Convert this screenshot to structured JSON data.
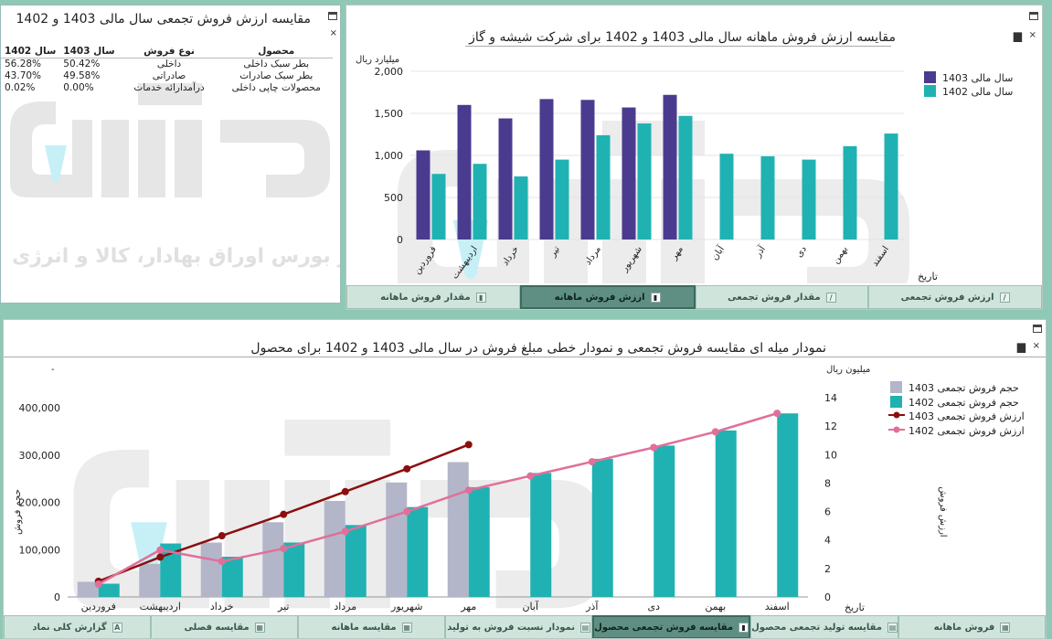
{
  "colors": {
    "purple": "#4b3b8f",
    "teal": "#20b2b2",
    "lavender": "#b3b6c9",
    "darkred": "#8b0e0e",
    "pink": "#e0709a",
    "active_tab": "#5f8f82"
  },
  "left_panel": {
    "title": "مقایسه ارزش فروش تجمعی سال مالی 1403 و 1402",
    "headers": {
      "product": "محصول",
      "sale_type": "نوع فروش",
      "year1": "سال 1403",
      "year2": "سال 1402"
    },
    "rows": [
      {
        "product": "بطر سبک داخلی",
        "sale_type": "داخلی",
        "y1403": "50.42%",
        "y1402": "56.28%"
      },
      {
        "product": "بطر سبک صادرات",
        "sale_type": "صادراتی",
        "y1403": "49.58%",
        "y1402": "43.70%"
      },
      {
        "product": "محصولات چاپی داخلی",
        "sale_type": "درآمدارائه خدمات",
        "y1403": "0.00%",
        "y1402": "0.02%"
      }
    ]
  },
  "top_chart": {
    "title": "مقایسه ارزش فروش ماهانه سال مالی 1403 و 1402 برای شرکت شیشه و گاز",
    "ylabel": "میلیارد ریال",
    "xlabel": "تاریخ",
    "legend": [
      "سال مالی 1403",
      "سال مالی 1402"
    ],
    "tabs": [
      {
        "label": "مقدار فروش ماهانه",
        "icon": "bar-chart-icon",
        "active": false
      },
      {
        "label": "ارزش فروش ماهانه",
        "icon": "bar-chart-icon",
        "active": true
      },
      {
        "label": "مقدار فروش تجمعی",
        "icon": "line-chart-icon",
        "active": false
      },
      {
        "label": "ارزش فروش تجمعی",
        "icon": "line-chart-icon",
        "active": false
      }
    ]
  },
  "bottom_chart": {
    "title": "نمودار میله ای مقایسه فروش تجمعی و نمودار خطی مبلغ فروش در سال مالی 1403 و 1402 برای محصول",
    "ylabel_left": "حجم فروش",
    "ylabel_right": "ارزش فروش",
    "unit_right": "میلیون ریال",
    "xlabel": "تاریخ",
    "dash": "-",
    "legend": [
      "حجم فروش تجمعی  1403",
      "حجم فروش تجمعی 1402",
      "ارزش فروش تجمعی 1403",
      "ارزش فروش تجمعی 1402"
    ],
    "tabs": [
      {
        "label": "گزارش کلی نماد",
        "icon": "letter-a-icon",
        "active": false
      },
      {
        "label": "مقایسه فصلی",
        "icon": "grid-icon",
        "active": false
      },
      {
        "label": "مقایسه ماهانه",
        "icon": "grid-icon",
        "active": false
      },
      {
        "label": "نمودار نسبت فروش به تولید",
        "icon": "table-icon",
        "active": false
      },
      {
        "label": "مقایسه فروش تجمعی محصول",
        "icon": "bar-chart-icon",
        "active": true
      },
      {
        "label": "مقایسه تولید تجمعی محصول",
        "icon": "table-icon",
        "active": false
      },
      {
        "label": "فروش ماهانه",
        "icon": "grid-icon",
        "active": false
      }
    ]
  },
  "watermark": {
    "brand": "آگاه",
    "line1": "کارگزار بورس اوراق بهادار، کالا و انرژی"
  },
  "chart_data": [
    {
      "type": "bar",
      "categories": [
        "فروردین",
        "اردیبهشت",
        "خرداد",
        "تیر",
        "مرداد",
        "شهریور",
        "مهر",
        "آبان",
        "آذر",
        "دی",
        "بهمن",
        "اسفند"
      ],
      "series": [
        {
          "name": "سال مالی 1403",
          "values": [
            1060,
            1600,
            1440,
            1670,
            1660,
            1570,
            1720,
            null,
            null,
            null,
            null,
            null
          ]
        },
        {
          "name": "سال مالی 1402",
          "values": [
            780,
            900,
            750,
            950,
            1240,
            1380,
            1470,
            1020,
            990,
            950,
            1110,
            1260
          ]
        }
      ],
      "ylim": [
        0,
        2000
      ],
      "yticks": [
        "0",
        "500",
        "1,000",
        "1,500",
        "2,000"
      ],
      "ylabel": "میلیارد ریال",
      "xlabel": "تاریخ",
      "legend_position": "right"
    },
    {
      "type": "bar",
      "categories": [
        "فروردین",
        "اردیبهشت",
        "خرداد",
        "تیر",
        "مرداد",
        "شهریور",
        "مهر",
        "آبان",
        "آذر",
        "دی",
        "بهمن",
        "اسفند"
      ],
      "bar_series": [
        {
          "name": "حجم فروش تجمعی  1403",
          "values": [
            32000,
            70000,
            115000,
            158000,
            203000,
            242000,
            285000,
            null,
            null,
            null,
            null,
            null
          ]
        },
        {
          "name": "حجم فروش تجمعی 1402",
          "values": [
            28000,
            113000,
            85000,
            115000,
            152000,
            190000,
            232000,
            262000,
            292000,
            320000,
            352000,
            388000
          ]
        }
      ],
      "line_series": [
        {
          "name": "ارزش فروش تجمعی 1403",
          "values": [
            1.1,
            2.8,
            4.3,
            5.8,
            7.4,
            9.0,
            10.7,
            null,
            null,
            null,
            null,
            null
          ]
        },
        {
          "name": "ارزش فروش تجمعی 1402",
          "values": [
            0.9,
            3.3,
            2.5,
            3.4,
            4.6,
            6.0,
            7.5,
            8.5,
            9.5,
            10.5,
            11.6,
            12.9
          ]
        }
      ],
      "ylim_left": [
        0,
        400000
      ],
      "yticks_left": [
        "0",
        "100,000",
        "200,000",
        "300,000",
        "400,000"
      ],
      "ylim_right": [
        0,
        14
      ],
      "yticks_right": [
        "0",
        "2",
        "4",
        "6",
        "8",
        "10",
        "12",
        "14"
      ],
      "ylabel_left": "حجم فروش",
      "ylabel_right": "ارزش فروش",
      "xlabel": "تاریخ",
      "legend_position": "top-right"
    }
  ]
}
